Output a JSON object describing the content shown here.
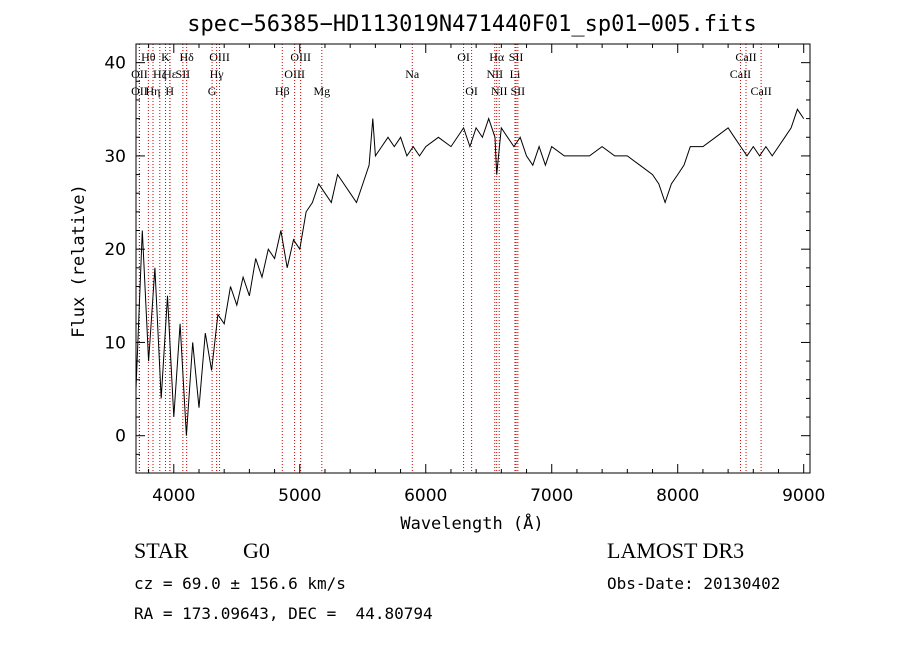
{
  "chart_data": {
    "type": "line",
    "title": "spec−56385−HD113019N471440F01_sp01−005.fits",
    "xlabel": "Wavelength (Å)",
    "ylabel": "Flux (relative)",
    "xlim": [
      3700,
      9050
    ],
    "ylim": [
      -4,
      42
    ],
    "xticks": [
      4000,
      5000,
      6000,
      7000,
      8000,
      9000
    ],
    "yticks": [
      0,
      10,
      20,
      30,
      40
    ],
    "grid": false,
    "series": [
      {
        "color": "#000000",
        "x": [
          3700,
          3750,
          3800,
          3850,
          3900,
          3950,
          4000,
          4050,
          4100,
          4150,
          4200,
          4250,
          4300,
          4350,
          4400,
          4450,
          4500,
          4550,
          4600,
          4650,
          4700,
          4750,
          4800,
          4850,
          4900,
          4950,
          5000,
          5050,
          5100,
          5150,
          5200,
          5250,
          5300,
          5350,
          5400,
          5450,
          5500,
          5550,
          5580,
          5600,
          5650,
          5700,
          5750,
          5800,
          5850,
          5900,
          5950,
          6000,
          6100,
          6200,
          6300,
          6350,
          6400,
          6450,
          6500,
          6550,
          6563,
          6600,
          6650,
          6700,
          6750,
          6800,
          6850,
          6900,
          6950,
          7000,
          7100,
          7200,
          7300,
          7400,
          7500,
          7600,
          7700,
          7800,
          7850,
          7900,
          7950,
          8000,
          8050,
          8100,
          8200,
          8300,
          8400,
          8450,
          8500,
          8550,
          8600,
          8650,
          8700,
          8750,
          8800,
          8850,
          8900,
          8950,
          9000
        ],
        "y": [
          5,
          22,
          8,
          18,
          4,
          15,
          2,
          12,
          0,
          10,
          3,
          11,
          7,
          13,
          12,
          16,
          14,
          17,
          15,
          19,
          17,
          20,
          19,
          22,
          18,
          21,
          20,
          24,
          25,
          27,
          26,
          25,
          28,
          27,
          26,
          25,
          27,
          29,
          34,
          30,
          31,
          32,
          31,
          32,
          30,
          31,
          30,
          31,
          32,
          31,
          33,
          31,
          33,
          32,
          34,
          32,
          28,
          33,
          32,
          31,
          32,
          30,
          29,
          31,
          29,
          31,
          30,
          30,
          30,
          31,
          30,
          30,
          29,
          28,
          27,
          25,
          27,
          28,
          29,
          31,
          31,
          32,
          33,
          32,
          31,
          30,
          31,
          30,
          31,
          30,
          31,
          32,
          33,
          35,
          34
        ]
      }
    ],
    "lines": [
      {
        "name": "Hθ",
        "x": 3798,
        "row": 0
      },
      {
        "name": "OII",
        "x": 3727,
        "row": 1
      },
      {
        "name": "OII",
        "x": 3727,
        "row": 2
      },
      {
        "name": "Hζ",
        "x": 3889,
        "row": 1
      },
      {
        "name": "Hη",
        "x": 3835,
        "row": 2
      },
      {
        "name": "K",
        "x": 3934,
        "row": 0
      },
      {
        "name": "Hε",
        "x": 3970,
        "row": 1
      },
      {
        "name": "H",
        "x": 3968,
        "row": 2
      },
      {
        "name": "Hδ",
        "x": 4102,
        "row": 0
      },
      {
        "name": "SII",
        "x": 4072,
        "row": 1
      },
      {
        "name": "OIII",
        "x": 4363,
        "row": 0
      },
      {
        "name": "Hγ",
        "x": 4340,
        "row": 1
      },
      {
        "name": "G",
        "x": 4304,
        "row": 2
      },
      {
        "name": "OIII",
        "x": 5007,
        "row": 0
      },
      {
        "name": "OIII",
        "x": 4959,
        "row": 1
      },
      {
        "name": "Hβ",
        "x": 4861,
        "row": 2
      },
      {
        "name": "Mg",
        "x": 5175,
        "row": 2
      },
      {
        "name": "Na",
        "x": 5893,
        "row": 1
      },
      {
        "name": "OI",
        "x": 6300,
        "row": 0
      },
      {
        "name": "OI",
        "x": 6364,
        "row": 2
      },
      {
        "name": "Hα",
        "x": 6563,
        "row": 0
      },
      {
        "name": "NII",
        "x": 6548,
        "row": 1
      },
      {
        "name": "NII",
        "x": 6583,
        "row": 2
      },
      {
        "name": "SII",
        "x": 6717,
        "row": 0
      },
      {
        "name": "Li",
        "x": 6708,
        "row": 1
      },
      {
        "name": "SII",
        "x": 6731,
        "row": 2
      },
      {
        "name": "CaII",
        "x": 8542,
        "row": 0
      },
      {
        "name": "CaII",
        "x": 8498,
        "row": 1
      },
      {
        "name": "CaII",
        "x": 8662,
        "row": 2
      }
    ],
    "line_color": "#cc0000",
    "info": {
      "class": "STAR",
      "subclass": "G0",
      "survey": "LAMOST DR3",
      "cz": "cz = 69.0 ± 156.6 km/s",
      "obsdate": "Obs-Date: 20130402",
      "radec": "RA = 173.09643, DEC =  44.80794"
    }
  }
}
